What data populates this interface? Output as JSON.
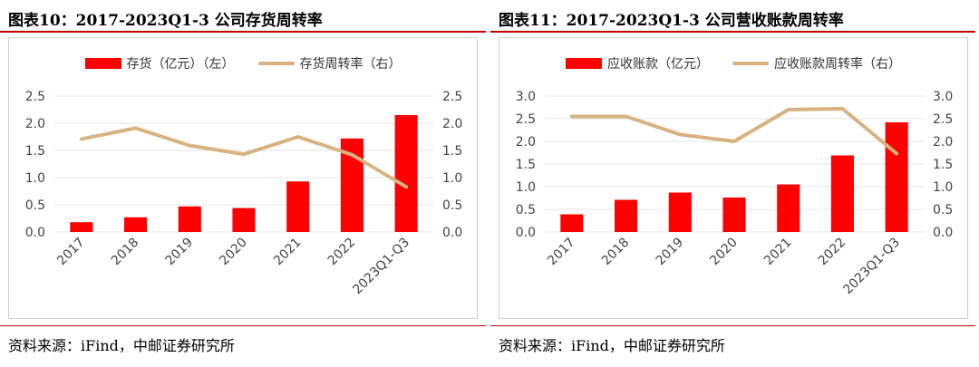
{
  "left": {
    "title": "图表10：2017-2023Q1-3 公司存货周转率",
    "source": "资料来源：iFind，中邮证券研究所",
    "chart_data": {
      "type": "bar",
      "categories": [
        "2017",
        "2018",
        "2019",
        "2020",
        "2021",
        "2022",
        "2023Q1-Q3"
      ],
      "series": [
        {
          "name": "存货（亿元）（左）",
          "type": "bar",
          "axis": "left",
          "color": "#ff0000",
          "values": [
            0.18,
            0.27,
            0.47,
            0.44,
            0.93,
            1.72,
            2.15
          ]
        },
        {
          "name": "存货周转率（右）",
          "type": "line",
          "axis": "right",
          "color": "#d8b382",
          "values": [
            1.71,
            1.91,
            1.59,
            1.43,
            1.75,
            1.42,
            0.83
          ]
        }
      ],
      "y_left": {
        "min": 0,
        "max": 2.5,
        "ticks": [
          "0.0",
          "0.5",
          "1.0",
          "1.5",
          "2.0",
          "2.5"
        ]
      },
      "y_right": {
        "min": 0,
        "max": 2.5,
        "ticks": [
          "0.0",
          "0.5",
          "1.0",
          "1.5",
          "2.0",
          "2.5"
        ]
      },
      "grid": true,
      "legend": "top-center"
    }
  },
  "right": {
    "title": "图表11：2017-2023Q1-3 公司营收账款周转率",
    "source": "资料来源：iFind，中邮证券研究所",
    "chart_data": {
      "type": "bar",
      "categories": [
        "2017",
        "2018",
        "2019",
        "2020",
        "2021",
        "2022",
        "2023Q1-Q3"
      ],
      "series": [
        {
          "name": "应收账款（亿元）",
          "type": "bar",
          "axis": "left",
          "color": "#ff0000",
          "values": [
            0.39,
            0.71,
            0.87,
            0.76,
            1.05,
            1.69,
            2.42
          ]
        },
        {
          "name": "应收账款周转率（右）",
          "type": "line",
          "axis": "right",
          "color": "#d8b382",
          "values": [
            2.55,
            2.55,
            2.15,
            2.0,
            2.7,
            2.72,
            1.73
          ]
        }
      ],
      "y_left": {
        "min": 0,
        "max": 3.0,
        "ticks": [
          "0.0",
          "0.5",
          "1.0",
          "1.5",
          "2.0",
          "2.5",
          "3.0"
        ]
      },
      "y_right": {
        "min": 0,
        "max": 3.0,
        "ticks": [
          "0.0",
          "0.5",
          "1.0",
          "1.5",
          "2.0",
          "2.5",
          "3.0"
        ]
      },
      "grid": true,
      "legend": "top-center"
    }
  }
}
